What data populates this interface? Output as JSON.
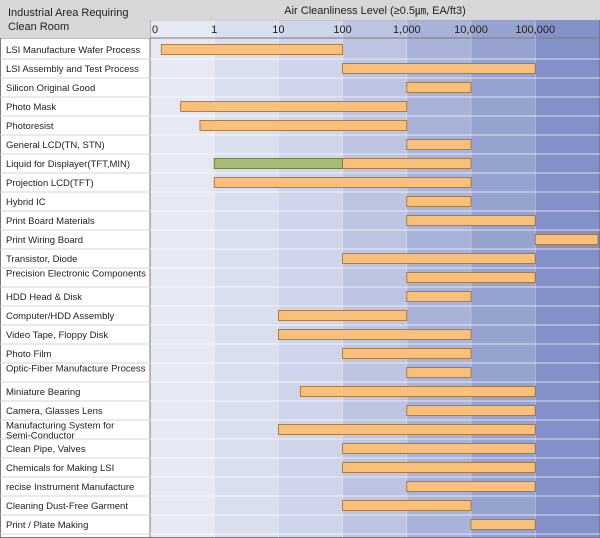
{
  "chart_data": {
    "type": "bar",
    "orientation": "horizontal-range",
    "row_header": "Industrial Area Requiring Clean Room",
    "title": "Air Cleanliness Level (≥0.5㎛, EA/ft3)",
    "x_scale": "log",
    "x_ticks": [
      {
        "value": 0.1,
        "label": "0"
      },
      {
        "value": 1,
        "label": "1"
      },
      {
        "value": 10,
        "label": "10"
      },
      {
        "value": 100,
        "label": "100"
      },
      {
        "value": 1000,
        "label": "1,000"
      },
      {
        "value": 10000,
        "label": "10,000"
      },
      {
        "value": 100000,
        "label": "100,000"
      }
    ],
    "xlim": [
      0.1,
      1000000
    ],
    "grid": true,
    "colors": {
      "bar_fill": "#f8c07a",
      "bar_stroke": "#a06a2c",
      "highlight_fill": "#a8bb74",
      "highlight_stroke": "#5e7034",
      "header_bg": "#d7d7d7",
      "label_col_bg": "#ffffff",
      "band_1": "#e6e9f3",
      "band_2": "#dadfef",
      "band_3": "#ced4ea",
      "band_4": "#bcc4e2",
      "band_5": "#a9b3d9",
      "band_6": "#96a2d0",
      "band_7": "#8491c8"
    },
    "categories": [
      "LSI Manufacture Wafer Process",
      "LSI Assembly and Test Process",
      "Silicon Original Good",
      "Photo Mask",
      "Photoresist",
      "General LCD(TN, STN)",
      "Liquid for Displayer(TFT,MIN)",
      "Projection LCD(TFT)",
      "Hybrid IC",
      "Print Board Materials",
      "Print Wiring Board",
      "Transistor, Diode",
      "Precision Electronic Components",
      "HDD Head & Disk",
      "Computer/HDD Assembly",
      "Video Tape, Floppy Disk",
      "Photo Film",
      "Optic-Fiber Manufacture Process",
      "Miniature Bearing",
      "Camera, Glasses Lens",
      "Manufacturing System for Semi-Conductor",
      "Clean Pipe, Valves",
      "Chemicals for Making LSI",
      "recise Instrument Manufacture",
      "Cleaning Dust-Free Garment",
      "Print / Plate Making"
    ],
    "ranges": [
      {
        "segments": [
          {
            "from": 0.15,
            "to": 100
          }
        ]
      },
      {
        "segments": [
          {
            "from": 100,
            "to": 100000
          }
        ]
      },
      {
        "segments": [
          {
            "from": 1000,
            "to": 10000
          }
        ]
      },
      {
        "segments": [
          {
            "from": 0.3,
            "to": 1000
          }
        ]
      },
      {
        "segments": [
          {
            "from": 0.6,
            "to": 1000
          }
        ]
      },
      {
        "segments": [
          {
            "from": 1000,
            "to": 10000
          }
        ]
      },
      {
        "segments": [
          {
            "from": 1,
            "to": 100,
            "highlight": true
          },
          {
            "from": 100,
            "to": 10000
          }
        ]
      },
      {
        "segments": [
          {
            "from": 1,
            "to": 10000
          }
        ]
      },
      {
        "segments": [
          {
            "from": 1000,
            "to": 10000
          }
        ]
      },
      {
        "segments": [
          {
            "from": 1000,
            "to": 100000
          }
        ]
      },
      {
        "segments": [
          {
            "from": 100000,
            "to": 1000000
          }
        ]
      },
      {
        "segments": [
          {
            "from": 100,
            "to": 100000
          }
        ]
      },
      {
        "segments": [
          {
            "from": 1000,
            "to": 100000
          }
        ]
      },
      {
        "segments": [
          {
            "from": 1000,
            "to": 10000
          }
        ]
      },
      {
        "segments": [
          {
            "from": 10,
            "to": 1000
          }
        ]
      },
      {
        "segments": [
          {
            "from": 10,
            "to": 10000
          }
        ]
      },
      {
        "segments": [
          {
            "from": 100,
            "to": 10000
          }
        ]
      },
      {
        "segments": [
          {
            "from": 1000,
            "to": 10000
          }
        ]
      },
      {
        "segments": [
          {
            "from": 22,
            "to": 100000
          }
        ]
      },
      {
        "segments": [
          {
            "from": 1000,
            "to": 100000
          }
        ]
      },
      {
        "segments": [
          {
            "from": 10,
            "to": 100000
          }
        ]
      },
      {
        "segments": [
          {
            "from": 100,
            "to": 100000
          }
        ]
      },
      {
        "segments": [
          {
            "from": 100,
            "to": 100000
          }
        ]
      },
      {
        "segments": [
          {
            "from": 1000,
            "to": 100000
          }
        ]
      },
      {
        "segments": [
          {
            "from": 100,
            "to": 10000
          }
        ]
      },
      {
        "segments": [
          {
            "from": 10000,
            "to": 100000
          }
        ]
      }
    ]
  }
}
